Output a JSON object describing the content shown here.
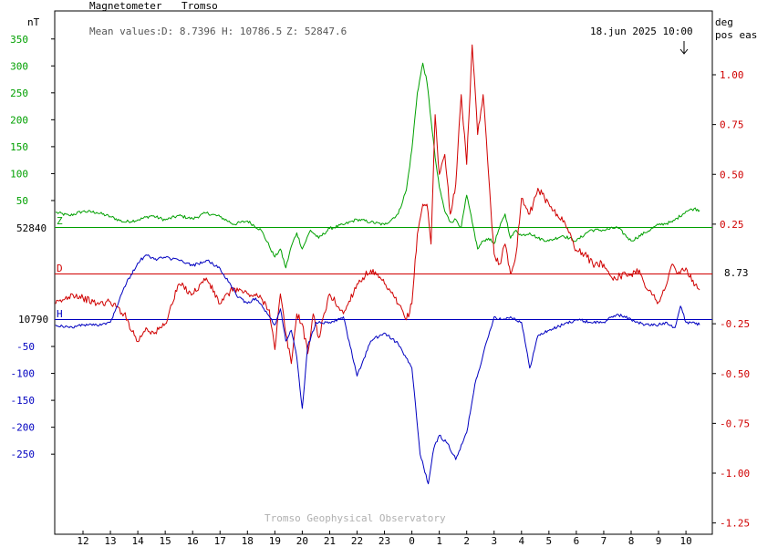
{
  "header": {
    "instrument": "Magnetometer",
    "station": "Tromso",
    "mean_prefix": "Mean values:",
    "mean_D": "D: 8.7396",
    "mean_H": "H: 10786.5",
    "mean_Z": "Z: 52847.6",
    "timestamp": "18.jun 2025 10:00",
    "now_marker_icon": "down-arrow-icon"
  },
  "left_axis": {
    "unit": "nT",
    "green_ticks": [
      350,
      300,
      250,
      200,
      150,
      100,
      50
    ],
    "blue_ticks": [
      -50,
      -100,
      -150,
      -200,
      -250
    ]
  },
  "right_axis": {
    "unit_line1": "deg",
    "unit_line2": "pos east",
    "ticks": [
      1.0,
      0.75,
      0.5,
      0.25,
      -0.25,
      -0.5,
      -0.75,
      -1.0,
      -1.25
    ],
    "tick_labels": [
      "1.00",
      "0.75",
      "0.50",
      "0.25",
      "-0.25",
      "-0.50",
      "-0.75",
      "-1.00",
      "-1.25"
    ]
  },
  "baselines": {
    "Z_label": "Z",
    "Z_value": "52840",
    "D_label": "D",
    "D_value": "8.73",
    "H_label": "H",
    "H_value": "10790"
  },
  "x_axis": {
    "labels": [
      "12",
      "13",
      "14",
      "15",
      "16",
      "17",
      "18",
      "19",
      "20",
      "21",
      "22",
      "23",
      "0",
      "1",
      "2",
      "3",
      "4",
      "5",
      "6",
      "7",
      "8",
      "9",
      "10"
    ]
  },
  "credit": "Tromso Geophysical Observatory",
  "colors": {
    "Z": "#00a000",
    "D": "#d00000",
    "H": "#0000c0",
    "axis": "#000000",
    "credit": "#b0b0b0"
  },
  "chart_data": {
    "type": "line",
    "xlabel": "",
    "x_unit": "hour (UT), 11:00 on 17 Jun to 10:30 on 18 Jun",
    "series": [
      {
        "name": "Z",
        "axis": "left (nT deviation from 52840)",
        "x": [
          11.0,
          11.5,
          12.0,
          12.5,
          13.0,
          13.5,
          14.0,
          14.5,
          15.0,
          15.5,
          16.0,
          16.5,
          17.0,
          17.5,
          18.0,
          18.5,
          18.8,
          19.0,
          19.2,
          19.4,
          19.6,
          19.8,
          20.0,
          20.3,
          20.6,
          21.0,
          21.5,
          22.0,
          22.5,
          23.0,
          23.5,
          23.8,
          24.0,
          24.2,
          24.4,
          24.55,
          24.7,
          24.85,
          25.0,
          25.2,
          25.4,
          25.6,
          25.8,
          26.0,
          26.2,
          26.4,
          26.6,
          26.8,
          27.0,
          27.2,
          27.4,
          27.6,
          27.8,
          28.0,
          28.3,
          28.6,
          29.0,
          29.5,
          30.0,
          30.5,
          31.0,
          31.5,
          32.0,
          32.5,
          33.0,
          33.5,
          34.0,
          34.3,
          34.5
        ],
        "values": [
          28,
          22,
          30,
          28,
          20,
          10,
          14,
          22,
          14,
          22,
          16,
          27,
          20,
          6,
          12,
          -5,
          -35,
          -55,
          -40,
          -75,
          -35,
          -10,
          -40,
          -5,
          -20,
          -2,
          5,
          15,
          10,
          5,
          25,
          70,
          145,
          250,
          305,
          270,
          200,
          130,
          75,
          30,
          10,
          15,
          0,
          60,
          10,
          -40,
          -25,
          -20,
          -30,
          0,
          25,
          -20,
          -5,
          -15,
          -10,
          -20,
          -25,
          -15,
          -25,
          -5,
          -5,
          0,
          -25,
          -10,
          5,
          10,
          30,
          35,
          32
        ]
      },
      {
        "name": "D",
        "axis": "right (deg, pos east)",
        "x": [
          11.0,
          11.3,
          11.6,
          12.0,
          12.5,
          13.0,
          13.5,
          14.0,
          14.3,
          14.6,
          15.0,
          15.5,
          16.0,
          16.5,
          17.0,
          17.5,
          18.0,
          18.5,
          18.8,
          19.0,
          19.2,
          19.4,
          19.6,
          19.8,
          20.0,
          20.2,
          20.4,
          20.6,
          21.0,
          21.5,
          22.0,
          22.5,
          23.0,
          23.5,
          23.8,
          24.0,
          24.2,
          24.4,
          24.55,
          24.7,
          24.85,
          25.0,
          25.2,
          25.4,
          25.6,
          25.8,
          26.0,
          26.2,
          26.4,
          26.6,
          26.8,
          27.0,
          27.2,
          27.4,
          27.6,
          27.8,
          28.0,
          28.3,
          28.6,
          29.0,
          29.3,
          29.6,
          30.0,
          30.3,
          30.6,
          31.0,
          31.3,
          31.6,
          32.0,
          32.3,
          32.6,
          33.0,
          33.3,
          33.5,
          33.7,
          34.0,
          34.3,
          34.5
        ],
        "values": [
          -0.15,
          -0.13,
          -0.1,
          -0.12,
          -0.15,
          -0.14,
          -0.2,
          -0.34,
          -0.27,
          -0.3,
          -0.25,
          -0.05,
          -0.1,
          -0.02,
          -0.15,
          -0.07,
          -0.1,
          -0.12,
          -0.18,
          -0.38,
          -0.1,
          -0.3,
          -0.45,
          -0.2,
          -0.25,
          -0.4,
          -0.2,
          -0.32,
          -0.1,
          -0.2,
          -0.05,
          0.02,
          -0.05,
          -0.15,
          -0.23,
          -0.15,
          0.2,
          0.35,
          0.35,
          0.15,
          0.8,
          0.5,
          0.6,
          0.3,
          0.45,
          0.9,
          0.55,
          1.15,
          0.7,
          0.9,
          0.5,
          0.1,
          0.05,
          0.15,
          0.0,
          0.1,
          0.38,
          0.3,
          0.43,
          0.35,
          0.3,
          0.25,
          0.12,
          0.1,
          0.05,
          0.05,
          -0.02,
          -0.01,
          0.0,
          0.02,
          -0.08,
          -0.14,
          -0.05,
          0.05,
          0.0,
          0.03,
          -0.06,
          -0.08
        ]
      },
      {
        "name": "H",
        "axis": "left (nT deviation from 10790)",
        "x": [
          11.0,
          11.5,
          12.0,
          12.5,
          13.0,
          13.5,
          14.0,
          14.3,
          14.6,
          15.0,
          15.5,
          16.0,
          16.5,
          17.0,
          17.3,
          17.6,
          18.0,
          18.3,
          18.6,
          19.0,
          19.2,
          19.4,
          19.6,
          19.8,
          20.0,
          20.2,
          20.5,
          21.0,
          21.5,
          22.0,
          22.5,
          23.0,
          23.5,
          24.0,
          24.3,
          24.6,
          24.8,
          25.0,
          25.3,
          25.6,
          26.0,
          26.3,
          26.6,
          27.0,
          27.3,
          27.6,
          28.0,
          28.3,
          28.6,
          29.0,
          29.5,
          30.0,
          30.5,
          31.0,
          31.5,
          32.0,
          32.5,
          33.0,
          33.3,
          33.6,
          33.8,
          34.0,
          34.3,
          34.5
        ],
        "values": [
          -10,
          -15,
          -10,
          -10,
          -5,
          60,
          105,
          120,
          112,
          115,
          110,
          100,
          110,
          95,
          70,
          45,
          30,
          40,
          20,
          -10,
          20,
          -40,
          -20,
          -70,
          -165,
          -50,
          -5,
          -5,
          5,
          -105,
          -40,
          -25,
          -45,
          -90,
          -250,
          -305,
          -240,
          -215,
          -230,
          -260,
          -210,
          -120,
          -65,
          5,
          0,
          5,
          -5,
          -90,
          -30,
          -20,
          -10,
          0,
          -5,
          -5,
          10,
          0,
          -10,
          -10,
          -5,
          -15,
          25,
          -5,
          -5,
          -10
        ]
      }
    ]
  }
}
